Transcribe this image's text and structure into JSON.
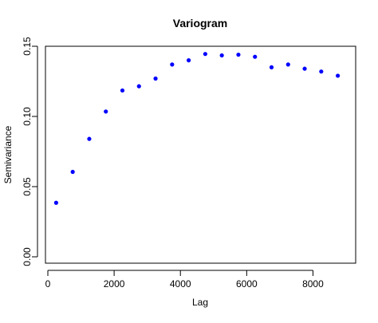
{
  "chart_data": {
    "type": "scatter",
    "title": "Variogram",
    "xlabel": "Lag",
    "ylabel": "Semivariance",
    "xlim": [
      0,
      9000
    ],
    "ylim": [
      0,
      0.15
    ],
    "x_ticks": [
      "0",
      "2000",
      "4000",
      "6000",
      "8000"
    ],
    "y_ticks": [
      "0.00",
      "0.05",
      "0.10",
      "0.15"
    ],
    "grid": false,
    "legend": "none",
    "point_color": "#0000ff",
    "series": [
      {
        "x": [
          250,
          750,
          1250,
          1750,
          2250,
          2750,
          3250,
          3750,
          4250,
          4750,
          5250,
          5750,
          6250,
          6750,
          7250,
          7750,
          8250,
          8750
        ],
        "y": [
          0.0385,
          0.0605,
          0.084,
          0.1035,
          0.1185,
          0.1215,
          0.127,
          0.137,
          0.14,
          0.1445,
          0.1435,
          0.144,
          0.1425,
          0.135,
          0.137,
          0.134,
          0.132,
          0.129
        ]
      }
    ]
  }
}
